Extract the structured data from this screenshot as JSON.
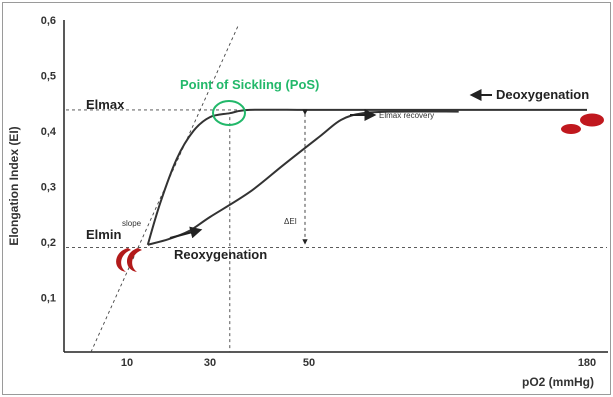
{
  "chart_data": {
    "type": "line",
    "title": "",
    "xlabel": "pO2 (mmHg)",
    "ylabel": "Elongation Index (EI)",
    "x_tick_labels": [
      "10",
      "30",
      "50",
      "180"
    ],
    "y_ticks": [
      0.1,
      0.2,
      0.3,
      0.4,
      0.5,
      0.6
    ],
    "y_tick_labels": [
      "0,1",
      "0,2",
      "0,3",
      "0,4",
      "0,5",
      "0,6"
    ],
    "ylim": [
      0.0,
      0.6
    ],
    "series": [
      {
        "name": "",
        "description_key": "deoxygenation",
        "points": [
          [
            15,
            0.195
          ],
          [
            18,
            0.27
          ],
          [
            22,
            0.35
          ],
          [
            26,
            0.4
          ],
          [
            30,
            0.425
          ],
          [
            34,
            0.432
          ],
          [
            38,
            0.438
          ],
          [
            50,
            0.438
          ],
          [
            80,
            0.438
          ],
          [
            120,
            0.438
          ],
          [
            180,
            0.438
          ]
        ]
      },
      {
        "name": "",
        "description_key": "reoxygenation",
        "points": [
          [
            15,
            0.195
          ],
          [
            20,
            0.205
          ],
          [
            25,
            0.22
          ],
          [
            30,
            0.245
          ],
          [
            38,
            0.29
          ],
          [
            45,
            0.34
          ],
          [
            55,
            0.39
          ],
          [
            65,
            0.42
          ],
          [
            75,
            0.432
          ],
          [
            90,
            0.435
          ],
          [
            120,
            0.435
          ]
        ]
      }
    ],
    "reference_lines": {
      "elmax": 0.438,
      "elmin": 0.19,
      "pos_x": 34
    },
    "annotations": {
      "elmax": "Elmax",
      "elmin": "Elmin",
      "pos": "Point of Sickling (PoS)",
      "deoxygenation": "Deoxygenation",
      "reoxygenation": "Reoxygenation",
      "elmax_recovery": "Elmax recovery",
      "slope": "slope",
      "delta_ei": "ΔEI"
    },
    "colors": {
      "curve": "#333333",
      "pos": "#22b86a",
      "cell": "#c0181e"
    },
    "grid": false,
    "legend": "none"
  }
}
